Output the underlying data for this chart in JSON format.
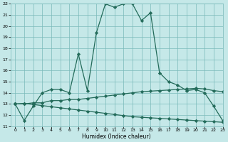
{
  "line1_x": [
    0,
    1,
    2,
    3,
    4,
    5,
    6,
    7,
    8,
    9,
    10,
    11,
    12,
    13,
    14,
    15,
    16,
    17,
    18,
    19,
    20,
    21,
    22,
    23
  ],
  "line1_y": [
    13.0,
    11.5,
    12.8,
    14.0,
    14.3,
    14.3,
    14.0,
    17.5,
    14.2,
    19.4,
    22.0,
    21.7,
    22.0,
    22.0,
    20.5,
    21.2,
    15.8,
    15.0,
    14.7,
    14.2,
    14.3,
    14.0,
    12.8,
    11.5
  ],
  "line2_x": [
    0,
    1,
    2,
    3,
    4,
    5,
    6,
    7,
    8,
    9,
    10,
    11,
    12,
    13,
    14,
    15,
    16,
    17,
    18,
    19,
    20,
    21,
    22,
    23
  ],
  "line2_y": [
    13.0,
    13.0,
    13.1,
    13.1,
    13.3,
    13.3,
    13.4,
    13.4,
    13.5,
    13.6,
    13.7,
    13.8,
    13.9,
    14.0,
    14.1,
    14.15,
    14.2,
    14.25,
    14.3,
    14.35,
    14.4,
    14.35,
    14.2,
    14.1
  ],
  "line3_x": [
    0,
    1,
    2,
    3,
    4,
    5,
    6,
    7,
    8,
    9,
    10,
    11,
    12,
    13,
    14,
    15,
    16,
    17,
    18,
    19,
    20,
    21,
    22,
    23
  ],
  "line3_y": [
    13.0,
    13.05,
    12.95,
    12.85,
    12.75,
    12.65,
    12.55,
    12.45,
    12.35,
    12.25,
    12.15,
    12.05,
    11.95,
    11.85,
    11.8,
    11.75,
    11.7,
    11.65,
    11.6,
    11.55,
    11.5,
    11.45,
    11.4,
    11.35
  ],
  "line_color": "#236b5a",
  "bg_color": "#c5e8e8",
  "grid_color": "#7ababa",
  "xlabel": "Humidex (Indice chaleur)",
  "xlim": [
    -0.5,
    23
  ],
  "ylim": [
    11,
    22
  ],
  "xticks": [
    0,
    1,
    2,
    3,
    4,
    5,
    6,
    7,
    8,
    9,
    10,
    11,
    12,
    13,
    14,
    15,
    16,
    17,
    18,
    19,
    20,
    21,
    22,
    23
  ],
  "yticks": [
    11,
    12,
    13,
    14,
    15,
    16,
    17,
    18,
    19,
    20,
    21,
    22
  ],
  "marker": "D",
  "markersize": 2.2,
  "linewidth": 0.9
}
